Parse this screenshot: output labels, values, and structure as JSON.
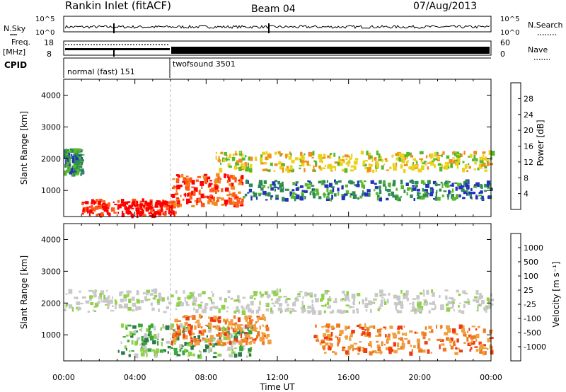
{
  "header": {
    "station": "Rankin Inlet (fitACF)",
    "beam": "Beam 04",
    "date": "07/Aug/2013"
  },
  "noise_panel": {
    "left_label": "N.Sky",
    "right_label": "N.Search",
    "left_ticks": [
      "10^5",
      "10^0"
    ],
    "right_ticks": [
      "10^5",
      "10^0"
    ]
  },
  "freq_panel": {
    "left_label_1": "Freq.",
    "left_label_2": "[MHz]",
    "right_label": "Nave",
    "left_ticks": [
      "18",
      "8"
    ],
    "right_ticks": [
      "60",
      "0"
    ]
  },
  "cpid_panel": {
    "label": "CPID",
    "modes": [
      {
        "name": "normal (fast) 151",
        "start_hour": 0,
        "end_hour": 6
      },
      {
        "name": "twofsound 3501",
        "start_hour": 6,
        "end_hour": 24
      }
    ]
  },
  "chart_data": [
    {
      "type": "heatmap",
      "title": "Power",
      "ylabel": "Slant Range [km]",
      "xlabel": "",
      "xlim": [
        0,
        24
      ],
      "ylim": [
        180,
        4500
      ],
      "y_ticks": [
        1000,
        2000,
        3000,
        4000
      ],
      "colorbar": {
        "label": "Power [dB]",
        "ticks": [
          4,
          8,
          12,
          16,
          20,
          24,
          28
        ],
        "colors": [
          "#1111ff",
          "#2233bb",
          "#2e8b57",
          "#56b82a",
          "#e8d21a",
          "#f28c1a",
          "#ff5a1a",
          "#ff0000"
        ]
      },
      "regions": [
        {
          "name": "Near-range strong echoes",
          "t0": 1.0,
          "t1": 6.2,
          "r0": 200,
          "r1": 700,
          "level": 7
        },
        {
          "name": "Post-06 UT strong band",
          "t0": 6.0,
          "t1": 10.0,
          "r0": 500,
          "r1": 1500,
          "level": 6
        },
        {
          "name": "Early-morning patch",
          "t0": 0.0,
          "t1": 1.0,
          "r0": 1500,
          "r1": 2300,
          "level": 2
        },
        {
          "name": "Mid-range band",
          "t0": 8.5,
          "t1": 24.0,
          "r0": 1600,
          "r1": 2200,
          "level": 4
        },
        {
          "name": "Lower band",
          "t0": 10.0,
          "t1": 24.0,
          "r0": 700,
          "r1": 1300,
          "level": 2
        }
      ]
    },
    {
      "type": "heatmap",
      "title": "Velocity",
      "ylabel": "Slant Range [km]",
      "xlabel": "Time UT",
      "xlim": [
        0,
        24
      ],
      "ylim": [
        180,
        4500
      ],
      "x_ticks": [
        "00:00",
        "04:00",
        "08:00",
        "12:00",
        "16:00",
        "20:00",
        "00:00"
      ],
      "y_ticks": [
        1000,
        2000,
        3000,
        4000
      ],
      "colorbar": {
        "label": "Velocity [m s⁻¹]",
        "ticks": [
          1000,
          500,
          100,
          25,
          -25,
          -100,
          -500,
          -1000
        ],
        "colors": [
          "#1f3fbf",
          "#2f7a4a",
          "#3aa83a",
          "#8fd24a",
          "#c8c8c8",
          "#f0a040",
          "#f07820",
          "#ee3c10",
          "#e00000"
        ]
      },
      "regions": [
        {
          "name": "Ground scatter band",
          "t0": 0.0,
          "t1": 24.0,
          "r0": 1700,
          "r1": 2400,
          "level": "gray"
        },
        {
          "name": "Morning green flow",
          "t0": 3.0,
          "t1": 10.5,
          "r0": 300,
          "r1": 1300,
          "level": "green"
        },
        {
          "name": "Orange receding flow",
          "t0": 6.0,
          "t1": 11.5,
          "r0": 700,
          "r1": 1600,
          "level": "orange"
        },
        {
          "name": "Afternoon orange flow",
          "t0": 14.0,
          "t1": 24.0,
          "r0": 400,
          "r1": 1300,
          "level": "orange"
        }
      ]
    }
  ]
}
